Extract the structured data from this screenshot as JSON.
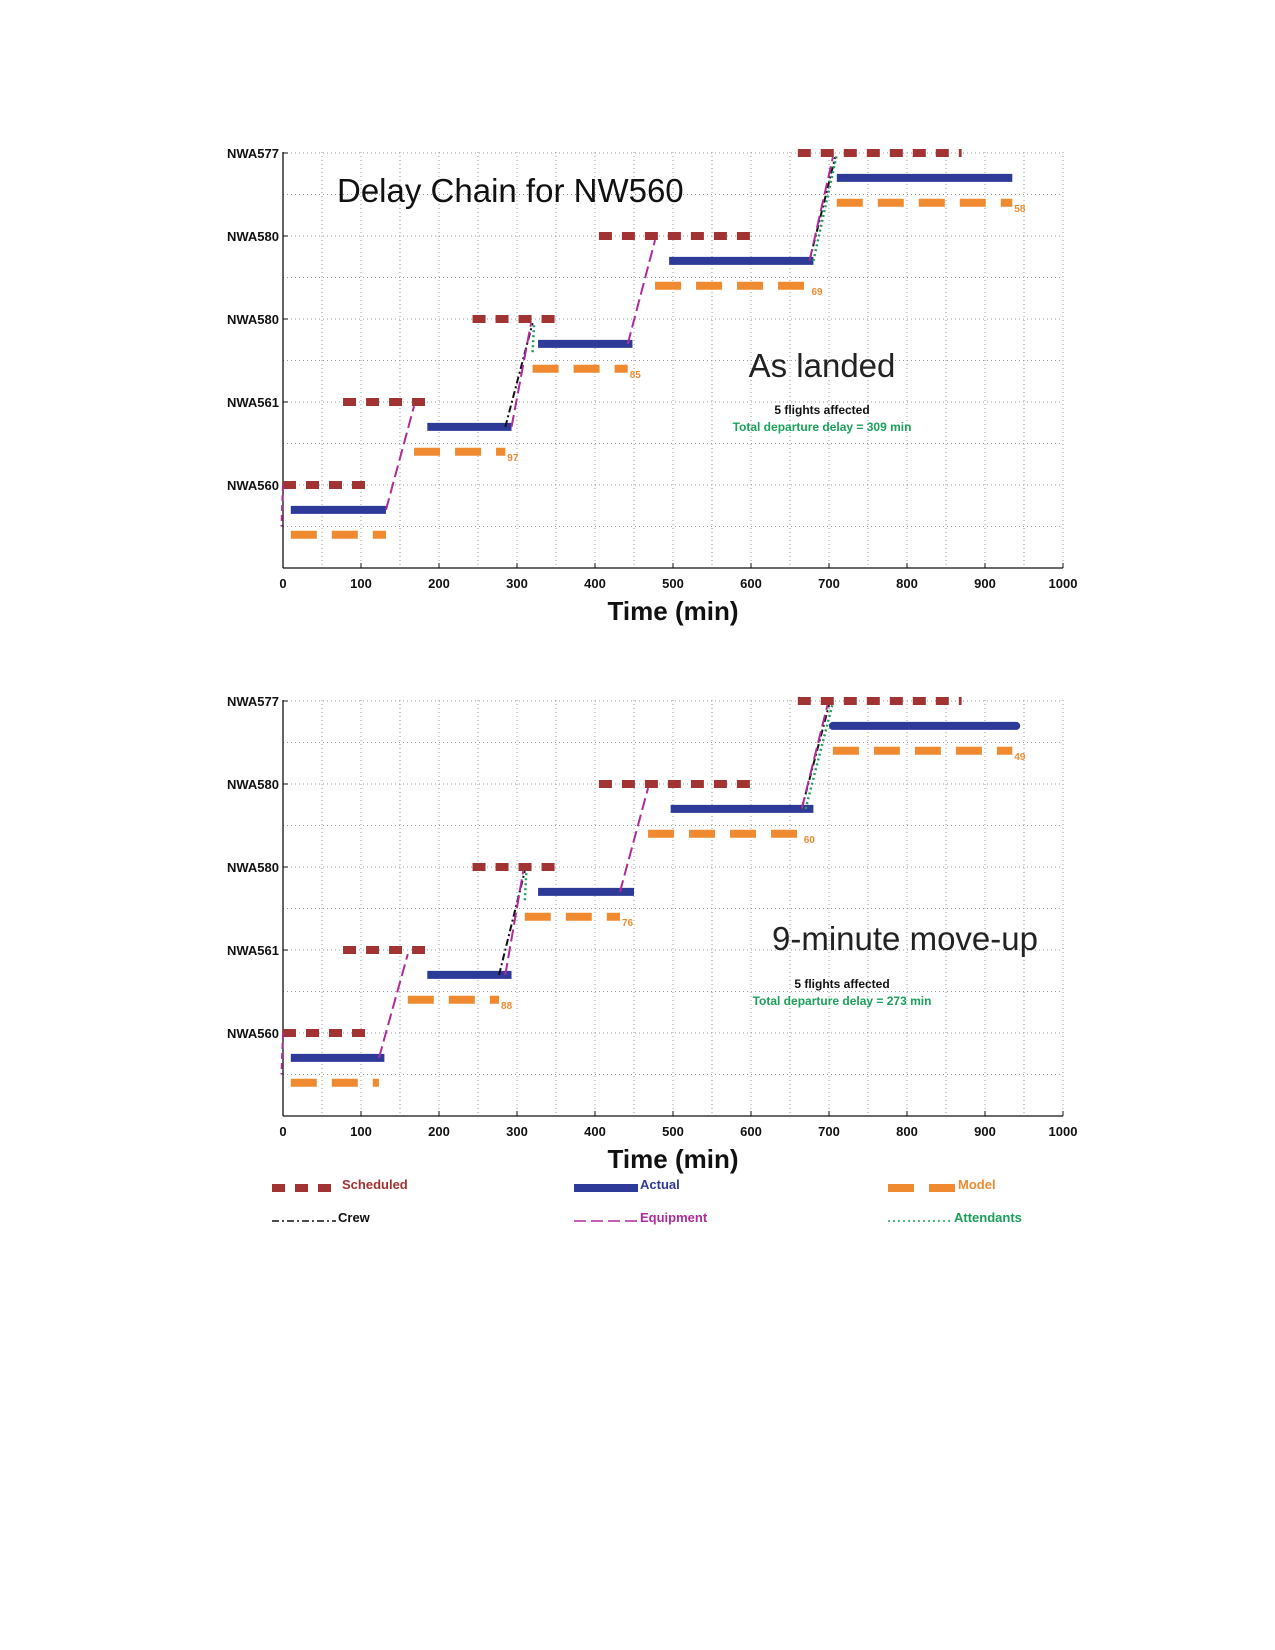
{
  "colors": {
    "scheduled": "#a23333",
    "actual": "#2e3a97",
    "model": "#f08a30",
    "crew": "#111111",
    "equipment": "#b02a9b",
    "attendants": "#1aa05a",
    "grid": "#9a9a9a",
    "subtitle_green": "#1aa05a"
  },
  "legend": {
    "scheduled": "Scheduled",
    "actual": "Actual",
    "model": "Model",
    "crew": "Crew",
    "equipment": "Equipment",
    "attendants": "Attendants"
  },
  "chart_data": [
    {
      "type": "line",
      "title": "Delay Chain for NW560",
      "annotation": "As landed",
      "subtitle1": "5 flights affected",
      "subtitle2": "Total departure delay = 309 min",
      "xlabel": "Time (min)",
      "ylabel": "",
      "xlim": [
        0,
        1000
      ],
      "xticks": [
        0,
        100,
        200,
        300,
        400,
        500,
        600,
        700,
        800,
        900,
        1000
      ],
      "ylim": [
        0,
        5
      ],
      "yticks": [
        1,
        2,
        3,
        4,
        5
      ],
      "ytick_labels": [
        "NWA560",
        "NWA561",
        "NWA580",
        "NWA580",
        "NWA577"
      ],
      "grid": true,
      "legend_position": "bottom",
      "flights": [
        {
          "name": "NWA560",
          "level": 1,
          "scheduled": [
            0,
            112
          ],
          "actual": [
            10,
            132
          ],
          "model": [
            10,
            132
          ],
          "model_label": ""
        },
        {
          "name": "NWA561",
          "level": 2,
          "scheduled": [
            77,
            188
          ],
          "actual": [
            185,
            293
          ],
          "model": [
            168,
            285
          ],
          "model_label": "97"
        },
        {
          "name": "NWA580",
          "level": 3,
          "scheduled": [
            243,
            355
          ],
          "actual": [
            327,
            448
          ],
          "model": [
            320,
            442
          ],
          "model_label": "85"
        },
        {
          "name": "NWA580",
          "level": 4,
          "scheduled": [
            405,
            605
          ],
          "actual": [
            495,
            680
          ],
          "model": [
            477,
            675
          ],
          "model_label": "69"
        },
        {
          "name": "NWA577",
          "level": 5,
          "scheduled": [
            660,
            870
          ],
          "actual": [
            710,
            935
          ],
          "model": [
            710,
            935
          ],
          "model_label": "58"
        }
      ],
      "connections": [
        {
          "type": "equipment",
          "from": [
            132,
            0.7
          ],
          "to": [
            168,
            1.95
          ]
        },
        {
          "type": "crew",
          "from": [
            285,
            1.7
          ],
          "to": [
            320,
            2.95
          ]
        },
        {
          "type": "equipment",
          "from": [
            293,
            1.7
          ],
          "to": [
            318,
            2.95
          ]
        },
        {
          "type": "attendants",
          "from": [
            320,
            2.6
          ],
          "to": [
            322,
            2.95
          ]
        },
        {
          "type": "equipment",
          "from": [
            442,
            2.7
          ],
          "to": [
            477,
            3.95
          ]
        },
        {
          "type": "crew",
          "from": [
            675,
            3.7
          ],
          "to": [
            708,
            4.95
          ]
        },
        {
          "type": "attendants",
          "from": [
            680,
            3.7
          ],
          "to": [
            710,
            4.98
          ]
        },
        {
          "type": "equipment",
          "from": [
            675,
            3.7
          ],
          "to": [
            705,
            4.95
          ]
        }
      ]
    },
    {
      "type": "line",
      "title": "",
      "annotation": "9-minute move-up",
      "subtitle1": "5 flights affected",
      "subtitle2": "Total departure delay = 273 min",
      "xlabel": "Time (min)",
      "ylabel": "",
      "xlim": [
        0,
        1000
      ],
      "xticks": [
        0,
        100,
        200,
        300,
        400,
        500,
        600,
        700,
        800,
        900,
        1000
      ],
      "ylim": [
        0,
        5
      ],
      "yticks": [
        1,
        2,
        3,
        4,
        5
      ],
      "ytick_labels": [
        "NWA560",
        "NWA561",
        "NWA580",
        "NWA580",
        "NWA577"
      ],
      "grid": true,
      "legend_position": "bottom",
      "flights": [
        {
          "name": "NWA560",
          "level": 1,
          "scheduled": [
            0,
            112
          ],
          "actual": [
            10,
            130
          ],
          "model": [
            10,
            123
          ],
          "model_label": ""
        },
        {
          "name": "NWA561",
          "level": 2,
          "scheduled": [
            77,
            188
          ],
          "actual": [
            185,
            293
          ],
          "model": [
            160,
            277
          ],
          "model_label": "88"
        },
        {
          "name": "NWA580",
          "level": 3,
          "scheduled": [
            243,
            355
          ],
          "actual": [
            327,
            450
          ],
          "model": [
            310,
            432
          ],
          "model_label": "76"
        },
        {
          "name": "NWA580",
          "level": 4,
          "scheduled": [
            405,
            605
          ],
          "actual": [
            497,
            680
          ],
          "model": [
            468,
            665
          ],
          "model_label": "60"
        },
        {
          "name": "NWA577",
          "level": 5,
          "scheduled": [
            660,
            870
          ],
          "actual": [
            705,
            940
          ],
          "model": [
            705,
            935
          ],
          "model_label": "49"
        }
      ],
      "connections": [
        {
          "type": "equipment",
          "from": [
            123,
            0.7
          ],
          "to": [
            160,
            1.95
          ]
        },
        {
          "type": "crew",
          "from": [
            277,
            1.7
          ],
          "to": [
            310,
            2.95
          ]
        },
        {
          "type": "equipment",
          "from": [
            285,
            1.7
          ],
          "to": [
            308,
            2.95
          ]
        },
        {
          "type": "attendants",
          "from": [
            310,
            2.6
          ],
          "to": [
            312,
            2.95
          ]
        },
        {
          "type": "equipment",
          "from": [
            432,
            2.7
          ],
          "to": [
            468,
            3.95
          ]
        },
        {
          "type": "crew",
          "from": [
            665,
            3.7
          ],
          "to": [
            700,
            4.95
          ]
        },
        {
          "type": "attendants",
          "from": [
            670,
            3.7
          ],
          "to": [
            705,
            4.98
          ]
        },
        {
          "type": "equipment",
          "from": [
            665,
            3.7
          ],
          "to": [
            698,
            4.95
          ]
        }
      ]
    }
  ]
}
